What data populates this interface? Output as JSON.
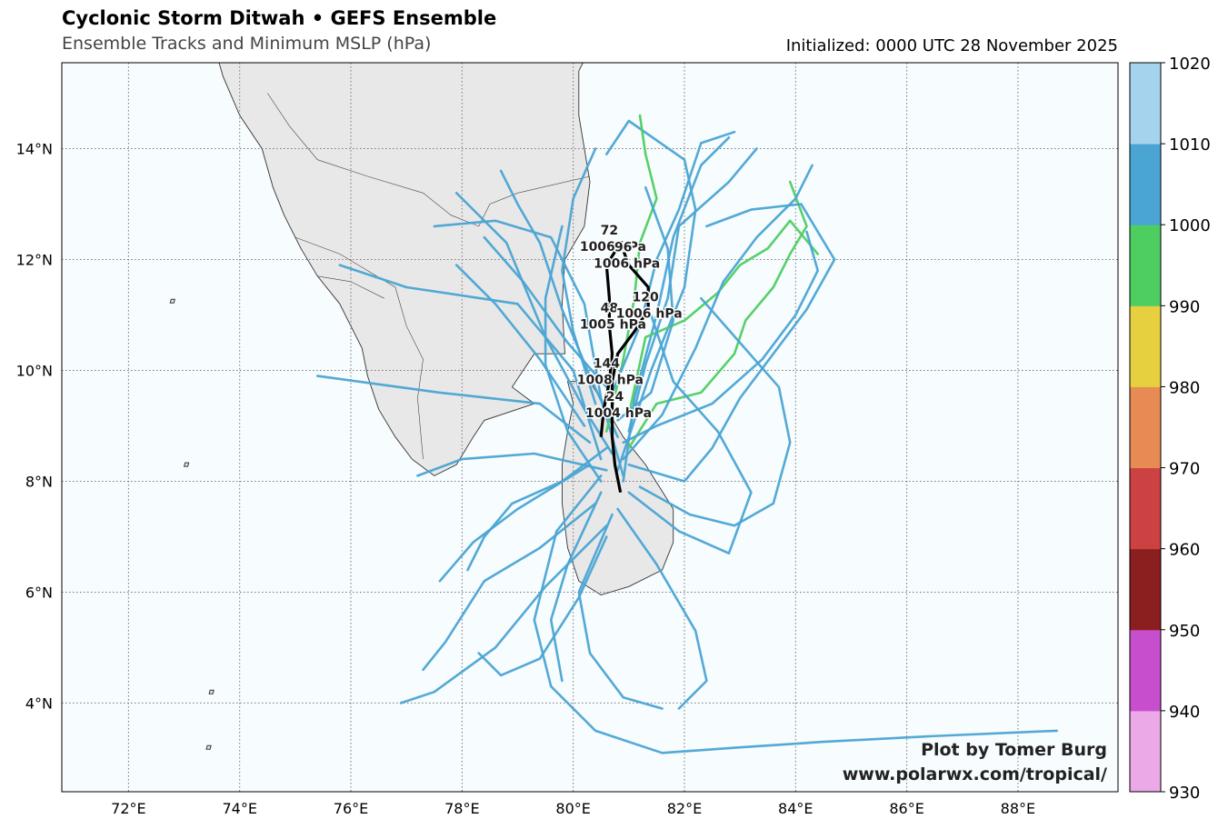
{
  "header": {
    "title": "Cyclonic Storm Ditwah • GEFS Ensemble",
    "subtitle": "Ensemble Tracks and Minimum MSLP (hPa)",
    "initialized": "Initialized: 0000 UTC 28 November 2025"
  },
  "credit": {
    "line1": "Plot by Tomer Burg",
    "line2": "www.polarwx.com/tropical/"
  },
  "map": {
    "lon_range": [
      70.8,
      89.8
    ],
    "lat_range": [
      2.4,
      15.55
    ],
    "lon_ticks": [
      72,
      74,
      76,
      78,
      80,
      82,
      84,
      86,
      88
    ],
    "lat_ticks": [
      4,
      6,
      8,
      10,
      12,
      14
    ],
    "lon_tick_labels": [
      "72°E",
      "74°E",
      "76°E",
      "78°E",
      "80°E",
      "82°E",
      "84°E",
      "86°E",
      "88°E"
    ],
    "lat_tick_labels": [
      "4°N",
      "6°N",
      "8°N",
      "10°N",
      "12°N",
      "14°N"
    ],
    "ocean_color": "#f7fcfe",
    "land_color": "#e8e8e8"
  },
  "colorbar": {
    "ticks": [
      "930",
      "940",
      "950",
      "960",
      "970",
      "980",
      "990",
      "1000",
      "1010",
      "1020"
    ],
    "bins": [
      {
        "from": 930,
        "to": 940,
        "color": "#eba9e8"
      },
      {
        "from": 940,
        "to": 950,
        "color": "#c74fcd"
      },
      {
        "from": 950,
        "to": 960,
        "color": "#8b1e1e"
      },
      {
        "from": 960,
        "to": 970,
        "color": "#cc4141"
      },
      {
        "from": 970,
        "to": 980,
        "color": "#e88a54"
      },
      {
        "from": 980,
        "to": 990,
        "color": "#e6d03f"
      },
      {
        "from": 990,
        "to": 1000,
        "color": "#4ecd61"
      },
      {
        "from": 1000,
        "to": 1010,
        "color": "#4aa4d4"
      },
      {
        "from": 1010,
        "to": 1020,
        "color": "#a5d3ee"
      }
    ]
  },
  "mean_track": [
    [
      80.85,
      7.8
    ],
    [
      80.75,
      8.3
    ],
    [
      80.7,
      8.8
    ],
    [
      80.7,
      9.3
    ],
    [
      80.7,
      9.8
    ],
    [
      80.8,
      10.3
    ],
    [
      81.1,
      10.7
    ],
    [
      81.35,
      11.1
    ],
    [
      81.35,
      11.5
    ],
    [
      81.0,
      11.9
    ],
    [
      80.85,
      12.3
    ],
    [
      80.6,
      11.9
    ],
    [
      80.65,
      11.3
    ],
    [
      80.65,
      10.8
    ],
    [
      80.7,
      10.3
    ],
    [
      80.65,
      9.8
    ],
    [
      80.55,
      9.3
    ],
    [
      80.5,
      8.8
    ]
  ],
  "forecast_labels": [
    {
      "hour": "24",
      "pressure": "1004 hPa",
      "lon": 80.75,
      "lat": 9.45
    },
    {
      "hour": "48",
      "pressure": "1005 hPa",
      "lon": 80.65,
      "lat": 11.05
    },
    {
      "hour": "72",
      "pressure": "1006 hPa",
      "lon": 80.65,
      "lat": 12.45
    },
    {
      "hour": "96",
      "pressure": "1006 hPa",
      "lon": 80.9,
      "lat": 12.15
    },
    {
      "hour": "120",
      "pressure": "1006 hPa",
      "lon": 81.3,
      "lat": 11.25
    },
    {
      "hour": "144",
      "pressure": "1008 hPa",
      "lon": 80.6,
      "lat": 10.05
    }
  ],
  "ensemble_tracks": [
    {
      "mslp": 1005,
      "points": [
        [
          80.9,
          8.1
        ],
        [
          80.5,
          9.5
        ],
        [
          80.2,
          11.2
        ],
        [
          79.6,
          12.4
        ],
        [
          78.6,
          12.7
        ],
        [
          77.5,
          12.6
        ]
      ]
    },
    {
      "mslp": 1006,
      "points": [
        [
          80.5,
          8.4
        ],
        [
          80.0,
          10.0
        ],
        [
          79.0,
          11.2
        ],
        [
          77.0,
          11.5
        ],
        [
          75.8,
          11.9
        ]
      ]
    },
    {
      "mslp": 1005,
      "points": [
        [
          80.3,
          8.7
        ],
        [
          79.4,
          9.4
        ],
        [
          77.6,
          9.6
        ],
        [
          75.4,
          9.9
        ]
      ]
    },
    {
      "mslp": 1006,
      "points": [
        [
          80.7,
          8.5
        ],
        [
          80.2,
          9.3
        ],
        [
          79.5,
          10.6
        ],
        [
          78.8,
          12.3
        ],
        [
          77.9,
          13.2
        ]
      ]
    },
    {
      "mslp": 1004,
      "points": [
        [
          80.9,
          8.0
        ],
        [
          81.1,
          9.5
        ],
        [
          81.5,
          11.0
        ],
        [
          81.8,
          12.4
        ],
        [
          82.3,
          13.7
        ],
        [
          82.8,
          14.2
        ]
      ]
    },
    {
      "mslp": 1003,
      "points": [
        [
          80.8,
          8.2
        ],
        [
          81.4,
          10.0
        ],
        [
          82.0,
          11.5
        ],
        [
          82.2,
          12.9
        ],
        [
          82.0,
          13.8
        ],
        [
          81.0,
          14.5
        ],
        [
          80.6,
          13.9
        ]
      ]
    },
    {
      "mslp": 998,
      "points": [
        [
          81.0,
          9.2
        ],
        [
          81.3,
          10.6
        ],
        [
          82.0,
          10.9
        ],
        [
          82.6,
          11.4
        ],
        [
          83.0,
          11.9
        ],
        [
          83.5,
          12.2
        ],
        [
          83.9,
          12.7
        ],
        [
          84.4,
          12.1
        ]
      ]
    },
    {
      "mslp": 999,
      "points": [
        [
          81.0,
          8.6
        ],
        [
          81.5,
          9.4
        ],
        [
          82.3,
          9.6
        ],
        [
          82.9,
          10.3
        ],
        [
          83.1,
          10.9
        ],
        [
          83.6,
          11.5
        ],
        [
          83.9,
          12.1
        ],
        [
          84.2,
          12.6
        ],
        [
          83.9,
          13.4
        ]
      ]
    },
    {
      "mslp": 998,
      "points": [
        [
          80.6,
          8.9
        ],
        [
          80.9,
          10.2
        ],
        [
          81.1,
          11.3
        ],
        [
          81.2,
          12.3
        ],
        [
          81.5,
          13.1
        ],
        [
          81.3,
          13.9
        ],
        [
          81.2,
          14.6
        ]
      ]
    },
    {
      "mslp": 1004,
      "points": [
        [
          81.0,
          8.3
        ],
        [
          82.0,
          8.0
        ],
        [
          82.5,
          8.6
        ],
        [
          83.0,
          9.5
        ],
        [
          83.6,
          10.3
        ],
        [
          84.2,
          11.1
        ],
        [
          84.7,
          12.0
        ],
        [
          84.1,
          13.0
        ],
        [
          83.2,
          12.9
        ],
        [
          82.4,
          12.6
        ]
      ]
    },
    {
      "mslp": 1004,
      "points": [
        [
          81.2,
          7.9
        ],
        [
          82.1,
          7.4
        ],
        [
          82.9,
          7.2
        ],
        [
          83.6,
          7.6
        ],
        [
          83.9,
          8.7
        ],
        [
          83.7,
          9.7
        ],
        [
          83.0,
          10.5
        ],
        [
          82.3,
          11.3
        ]
      ]
    },
    {
      "mslp": 1005,
      "points": [
        [
          81.0,
          7.8
        ],
        [
          81.9,
          7.1
        ],
        [
          82.8,
          6.7
        ],
        [
          83.2,
          7.8
        ],
        [
          82.6,
          8.9
        ],
        [
          81.8,
          9.8
        ],
        [
          81.4,
          11.0
        ]
      ]
    },
    {
      "mslp": 1006,
      "points": [
        [
          80.8,
          7.5
        ],
        [
          81.5,
          6.5
        ],
        [
          82.2,
          5.3
        ],
        [
          82.4,
          4.4
        ],
        [
          81.9,
          3.9
        ]
      ]
    },
    {
      "mslp": 1006,
      "points": [
        [
          80.6,
          7.0
        ],
        [
          80.1,
          5.9
        ],
        [
          79.4,
          4.8
        ],
        [
          78.7,
          4.5
        ],
        [
          78.3,
          4.9
        ]
      ]
    },
    {
      "mslp": 1005,
      "points": [
        [
          80.6,
          7.2
        ],
        [
          79.5,
          6.1
        ],
        [
          78.6,
          5.0
        ],
        [
          77.5,
          4.2
        ],
        [
          76.9,
          4.0
        ]
      ]
    },
    {
      "mslp": 1006,
      "points": [
        [
          80.4,
          7.6
        ],
        [
          79.4,
          6.8
        ],
        [
          78.4,
          6.2
        ],
        [
          77.7,
          5.1
        ],
        [
          77.3,
          4.6
        ]
      ]
    },
    {
      "mslp": 1007,
      "points": [
        [
          80.5,
          7.8
        ],
        [
          79.9,
          6.5
        ],
        [
          79.6,
          5.5
        ],
        [
          79.8,
          4.4
        ]
      ]
    },
    {
      "mslp": 1005,
      "points": [
        [
          80.7,
          7.4
        ],
        [
          80.1,
          6.0
        ],
        [
          80.3,
          4.9
        ],
        [
          80.9,
          4.1
        ],
        [
          81.6,
          3.9
        ]
      ]
    },
    {
      "mslp": 1004,
      "points": [
        [
          80.5,
          8.1
        ],
        [
          79.7,
          7.1
        ],
        [
          79.3,
          5.5
        ],
        [
          79.6,
          4.3
        ],
        [
          80.4,
          3.5
        ],
        [
          81.6,
          3.1
        ],
        [
          83.0,
          3.2
        ],
        [
          84.5,
          3.3
        ],
        [
          86.4,
          3.4
        ],
        [
          88.7,
          3.5
        ]
      ]
    },
    {
      "mslp": 1005,
      "points": [
        [
          80.3,
          8.3
        ],
        [
          79.0,
          7.5
        ],
        [
          78.2,
          6.9
        ],
        [
          77.6,
          6.2
        ]
      ]
    },
    {
      "mslp": 1004,
      "points": [
        [
          80.6,
          8.6
        ],
        [
          79.8,
          8.0
        ],
        [
          78.9,
          7.6
        ],
        [
          78.4,
          7.0
        ],
        [
          78.1,
          6.4
        ]
      ]
    },
    {
      "mslp": 1006,
      "points": [
        [
          80.8,
          8.8
        ],
        [
          80.3,
          9.9
        ],
        [
          79.8,
          11.1
        ],
        [
          79.4,
          12.3
        ],
        [
          79.0,
          13.0
        ],
        [
          78.7,
          13.6
        ]
      ]
    },
    {
      "mslp": 1005,
      "points": [
        [
          80.9,
          8.4
        ],
        [
          81.6,
          9.2
        ],
        [
          82.2,
          10.4
        ],
        [
          82.7,
          11.6
        ],
        [
          83.3,
          12.4
        ],
        [
          84.0,
          13.1
        ],
        [
          84.3,
          13.7
        ]
      ]
    },
    {
      "mslp": 1005,
      "points": [
        [
          81.0,
          8.9
        ],
        [
          81.3,
          10.1
        ],
        [
          81.7,
          11.3
        ],
        [
          81.9,
          12.6
        ],
        [
          82.8,
          13.4
        ],
        [
          83.3,
          14.0
        ]
      ]
    },
    {
      "mslp": 1007,
      "points": [
        [
          80.2,
          9.0
        ],
        [
          79.4,
          10.2
        ],
        [
          78.6,
          11.2
        ],
        [
          77.9,
          11.9
        ]
      ]
    },
    {
      "mslp": 1004,
      "points": [
        [
          80.4,
          9.4
        ],
        [
          80.0,
          10.7
        ],
        [
          79.8,
          11.8
        ],
        [
          80.0,
          13.1
        ],
        [
          80.4,
          14.0
        ]
      ]
    },
    {
      "mslp": 1005,
      "points": [
        [
          80.7,
          9.6
        ],
        [
          81.2,
          10.8
        ],
        [
          81.5,
          12.0
        ],
        [
          81.9,
          12.9
        ],
        [
          82.3,
          14.1
        ],
        [
          82.9,
          14.3
        ]
      ]
    },
    {
      "mslp": 1006,
      "points": [
        [
          80.6,
          9.7
        ],
        [
          79.9,
          10.5
        ],
        [
          79.1,
          11.6
        ],
        [
          78.4,
          12.4
        ]
      ]
    },
    {
      "mslp": 1006,
      "points": [
        [
          80.8,
          9.1
        ],
        [
          81.4,
          9.6
        ],
        [
          81.8,
          10.9
        ],
        [
          81.7,
          12.2
        ],
        [
          81.3,
          13.3
        ]
      ]
    },
    {
      "mslp": 1005,
      "points": [
        [
          80.5,
          8.0
        ],
        [
          79.9,
          8.9
        ],
        [
          79.5,
          10.1
        ],
        [
          79.5,
          11.3
        ],
        [
          79.8,
          12.6
        ]
      ]
    },
    {
      "mslp": 1004,
      "points": [
        [
          80.9,
          8.7
        ],
        [
          81.5,
          9.0
        ],
        [
          82.5,
          9.4
        ],
        [
          83.4,
          10.2
        ],
        [
          84.0,
          11.0
        ],
        [
          84.4,
          11.8
        ],
        [
          84.2,
          12.5
        ]
      ]
    },
    {
      "mslp": 1005,
      "points": [
        [
          80.6,
          8.2
        ],
        [
          79.3,
          8.5
        ],
        [
          78.0,
          8.4
        ],
        [
          77.2,
          8.1
        ]
      ]
    }
  ]
}
